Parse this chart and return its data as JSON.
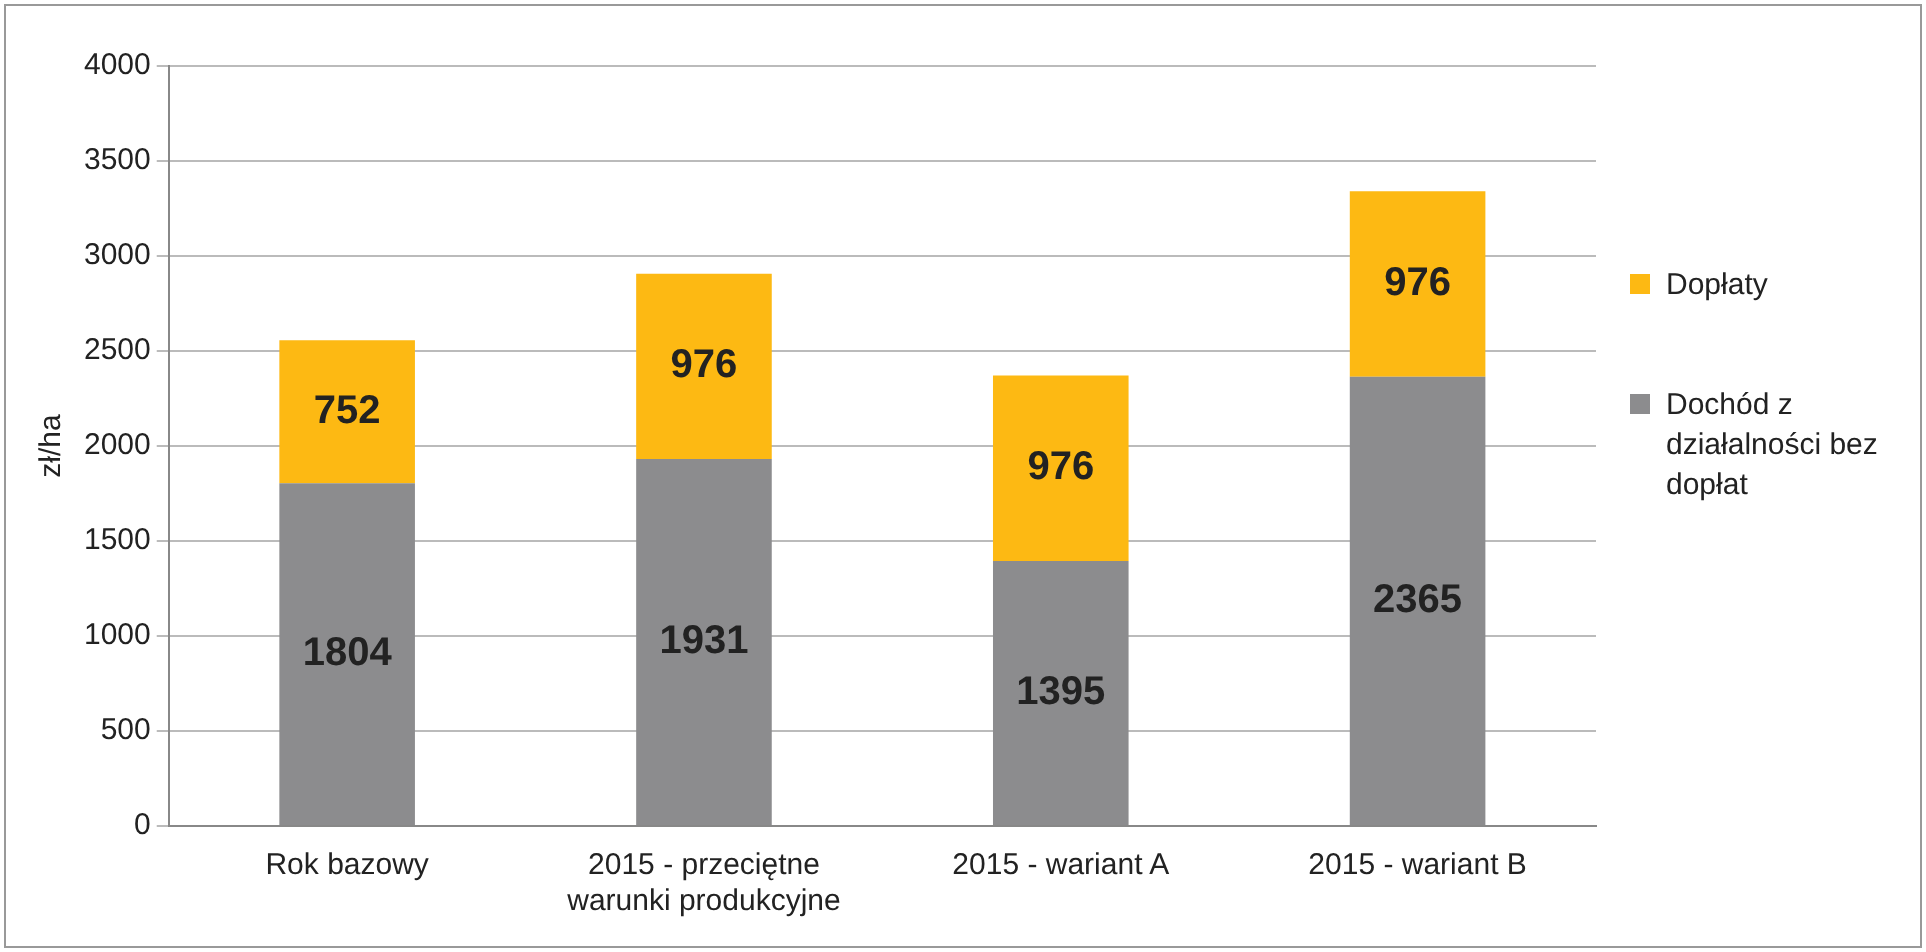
{
  "chart_data": {
    "type": "bar",
    "stacked": true,
    "ylabel": "zł/ha",
    "categories": [
      "Rok bazowy",
      "2015 - przeciętne warunki produkcyjne",
      "2015 - wariant A",
      "2015 - wariant B"
    ],
    "series": [
      {
        "name": "Dochód z działalności bez dopłat",
        "color": "#8c8c8e",
        "values": [
          1804,
          1931,
          1395,
          2365
        ]
      },
      {
        "name": "Dopłaty",
        "color": "#fdb913",
        "values": [
          752,
          976,
          976,
          976
        ]
      }
    ],
    "ylim": [
      0,
      4000
    ],
    "yticks": [
      0,
      500,
      1000,
      1500,
      2000,
      2500,
      3000,
      3500,
      4000
    ],
    "grid": "y",
    "legend": "right",
    "data_labels": true
  }
}
